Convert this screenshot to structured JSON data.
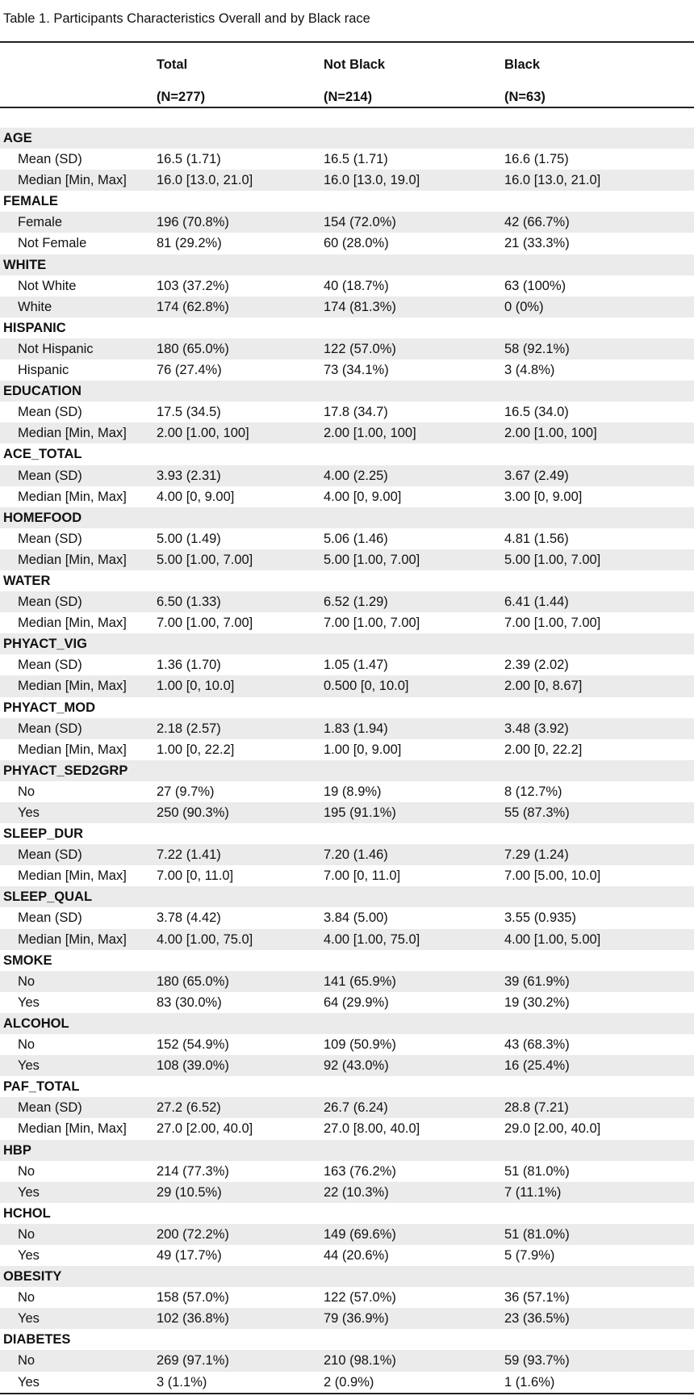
{
  "caption": "Table 1. Participants Characteristics Overall and by Black race",
  "columns": [
    {
      "name": "Total",
      "n": "(N=277)"
    },
    {
      "name": "Not Black",
      "n": "(N=214)"
    },
    {
      "name": "Black",
      "n": "(N=63)"
    }
  ],
  "rows": [
    {
      "type": "var",
      "label": "AGE"
    },
    {
      "type": "stat",
      "label": "Mean (SD)",
      "values": [
        "16.5 (1.71)",
        "16.5 (1.71)",
        "16.6 (1.75)"
      ]
    },
    {
      "type": "stat",
      "label": "Median [Min, Max]",
      "values": [
        "16.0 [13.0, 21.0]",
        "16.0 [13.0, 19.0]",
        "16.0 [13.0, 21.0]"
      ]
    },
    {
      "type": "var",
      "label": "FEMALE"
    },
    {
      "type": "stat",
      "label": "Female",
      "values": [
        "196 (70.8%)",
        "154 (72.0%)",
        "42 (66.7%)"
      ]
    },
    {
      "type": "stat",
      "label": "Not Female",
      "values": [
        "81 (29.2%)",
        "60 (28.0%)",
        "21 (33.3%)"
      ]
    },
    {
      "type": "var",
      "label": "WHITE"
    },
    {
      "type": "stat",
      "label": "Not White",
      "values": [
        "103 (37.2%)",
        "40 (18.7%)",
        "63 (100%)"
      ]
    },
    {
      "type": "stat",
      "label": "White",
      "values": [
        "174 (62.8%)",
        "174 (81.3%)",
        "0 (0%)"
      ]
    },
    {
      "type": "var",
      "label": "HISPANIC"
    },
    {
      "type": "stat",
      "label": "Not Hispanic",
      "values": [
        "180 (65.0%)",
        "122 (57.0%)",
        "58 (92.1%)"
      ]
    },
    {
      "type": "stat",
      "label": "Hispanic",
      "values": [
        "76 (27.4%)",
        "73 (34.1%)",
        "3 (4.8%)"
      ]
    },
    {
      "type": "var",
      "label": "EDUCATION"
    },
    {
      "type": "stat",
      "label": "Mean (SD)",
      "values": [
        "17.5 (34.5)",
        "17.8 (34.7)",
        "16.5 (34.0)"
      ]
    },
    {
      "type": "stat",
      "label": "Median [Min, Max]",
      "values": [
        "2.00 [1.00, 100]",
        "2.00 [1.00, 100]",
        "2.00 [1.00, 100]"
      ]
    },
    {
      "type": "var",
      "label": "ACE_TOTAL"
    },
    {
      "type": "stat",
      "label": "Mean (SD)",
      "values": [
        "3.93 (2.31)",
        "4.00 (2.25)",
        "3.67 (2.49)"
      ]
    },
    {
      "type": "stat",
      "label": "Median [Min, Max]",
      "values": [
        "4.00 [0, 9.00]",
        "4.00 [0, 9.00]",
        "3.00 [0, 9.00]"
      ]
    },
    {
      "type": "var",
      "label": "HOMEFOOD"
    },
    {
      "type": "stat",
      "label": "Mean (SD)",
      "values": [
        "5.00 (1.49)",
        "5.06 (1.46)",
        "4.81 (1.56)"
      ]
    },
    {
      "type": "stat",
      "label": "Median [Min, Max]",
      "values": [
        "5.00 [1.00, 7.00]",
        "5.00 [1.00, 7.00]",
        "5.00 [1.00, 7.00]"
      ]
    },
    {
      "type": "var",
      "label": "WATER"
    },
    {
      "type": "stat",
      "label": "Mean (SD)",
      "values": [
        "6.50 (1.33)",
        "6.52 (1.29)",
        "6.41 (1.44)"
      ]
    },
    {
      "type": "stat",
      "label": "Median [Min, Max]",
      "values": [
        "7.00 [1.00, 7.00]",
        "7.00 [1.00, 7.00]",
        "7.00 [1.00, 7.00]"
      ]
    },
    {
      "type": "var",
      "label": "PHYACT_VIG"
    },
    {
      "type": "stat",
      "label": "Mean (SD)",
      "values": [
        "1.36 (1.70)",
        "1.05 (1.47)",
        "2.39 (2.02)"
      ]
    },
    {
      "type": "stat",
      "label": "Median [Min, Max]",
      "values": [
        "1.00 [0, 10.0]",
        "0.500 [0, 10.0]",
        "2.00 [0, 8.67]"
      ]
    },
    {
      "type": "var",
      "label": "PHYACT_MOD"
    },
    {
      "type": "stat",
      "label": "Mean (SD)",
      "values": [
        "2.18 (2.57)",
        "1.83 (1.94)",
        "3.48 (3.92)"
      ]
    },
    {
      "type": "stat",
      "label": "Median [Min, Max]",
      "values": [
        "1.00 [0, 22.2]",
        "1.00 [0, 9.00]",
        "2.00 [0, 22.2]"
      ]
    },
    {
      "type": "var",
      "label": "PHYACT_SED2GRP"
    },
    {
      "type": "stat",
      "label": "No",
      "values": [
        "27 (9.7%)",
        "19 (8.9%)",
        "8 (12.7%)"
      ]
    },
    {
      "type": "stat",
      "label": "Yes",
      "values": [
        "250 (90.3%)",
        "195 (91.1%)",
        "55 (87.3%)"
      ]
    },
    {
      "type": "var",
      "label": "SLEEP_DUR"
    },
    {
      "type": "stat",
      "label": "Mean (SD)",
      "values": [
        "7.22 (1.41)",
        "7.20 (1.46)",
        "7.29 (1.24)"
      ]
    },
    {
      "type": "stat",
      "label": "Median [Min, Max]",
      "values": [
        "7.00 [0, 11.0]",
        "7.00 [0, 11.0]",
        "7.00 [5.00, 10.0]"
      ]
    },
    {
      "type": "var",
      "label": "SLEEP_QUAL"
    },
    {
      "type": "stat",
      "label": "Mean (SD)",
      "values": [
        "3.78 (4.42)",
        "3.84 (5.00)",
        "3.55 (0.935)"
      ]
    },
    {
      "type": "stat",
      "label": "Median [Min, Max]",
      "values": [
        "4.00 [1.00, 75.0]",
        "4.00 [1.00, 75.0]",
        "4.00 [1.00, 5.00]"
      ]
    },
    {
      "type": "var",
      "label": "SMOKE"
    },
    {
      "type": "stat",
      "label": "No",
      "values": [
        "180 (65.0%)",
        "141 (65.9%)",
        "39 (61.9%)"
      ]
    },
    {
      "type": "stat",
      "label": "Yes",
      "values": [
        "83 (30.0%)",
        "64 (29.9%)",
        "19 (30.2%)"
      ]
    },
    {
      "type": "var",
      "label": "ALCOHOL"
    },
    {
      "type": "stat",
      "label": "No",
      "values": [
        "152 (54.9%)",
        "109 (50.9%)",
        "43 (68.3%)"
      ]
    },
    {
      "type": "stat",
      "label": "Yes",
      "values": [
        "108 (39.0%)",
        "92 (43.0%)",
        "16 (25.4%)"
      ]
    },
    {
      "type": "var",
      "label": "PAF_TOTAL"
    },
    {
      "type": "stat",
      "label": "Mean (SD)",
      "values": [
        "27.2 (6.52)",
        "26.7 (6.24)",
        "28.8 (7.21)"
      ]
    },
    {
      "type": "stat",
      "label": "Median [Min, Max]",
      "values": [
        "27.0 [2.00, 40.0]",
        "27.0 [8.00, 40.0]",
        "29.0 [2.00, 40.0]"
      ]
    },
    {
      "type": "var",
      "label": "HBP"
    },
    {
      "type": "stat",
      "label": "No",
      "values": [
        "214 (77.3%)",
        "163 (76.2%)",
        "51 (81.0%)"
      ]
    },
    {
      "type": "stat",
      "label": "Yes",
      "values": [
        "29 (10.5%)",
        "22 (10.3%)",
        "7 (11.1%)"
      ]
    },
    {
      "type": "var",
      "label": "HCHOL"
    },
    {
      "type": "stat",
      "label": "No",
      "values": [
        "200 (72.2%)",
        "149 (69.6%)",
        "51 (81.0%)"
      ]
    },
    {
      "type": "stat",
      "label": "Yes",
      "values": [
        "49 (17.7%)",
        "44 (20.6%)",
        "5 (7.9%)"
      ]
    },
    {
      "type": "var",
      "label": "OBESITY"
    },
    {
      "type": "stat",
      "label": "No",
      "values": [
        "158 (57.0%)",
        "122 (57.0%)",
        "36 (57.1%)"
      ]
    },
    {
      "type": "stat",
      "label": "Yes",
      "values": [
        "102 (36.8%)",
        "79 (36.9%)",
        "23 (36.5%)"
      ]
    },
    {
      "type": "var",
      "label": "DIABETES"
    },
    {
      "type": "stat",
      "label": "No",
      "values": [
        "269 (97.1%)",
        "210 (98.1%)",
        "59 (93.7%)"
      ]
    },
    {
      "type": "stat",
      "label": "Yes",
      "values": [
        "3 (1.1%)",
        "2 (0.9%)",
        "1 (1.6%)"
      ]
    }
  ]
}
